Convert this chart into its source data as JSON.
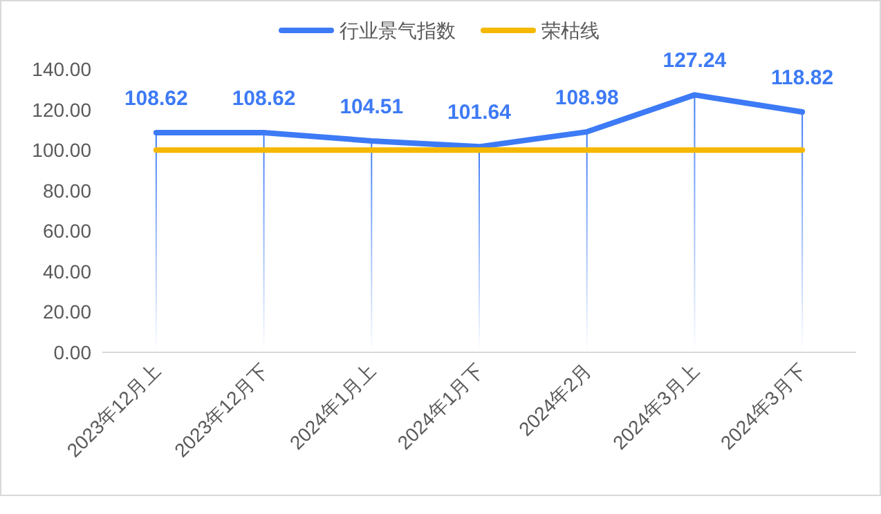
{
  "chart_data": {
    "type": "line",
    "categories": [
      "2023年12月上",
      "2023年12月下",
      "2024年1月上",
      "2024年1月下",
      "2024年2月",
      "2024年3月上",
      "2024年3月下"
    ],
    "series": [
      {
        "name": "行业景气指数",
        "color": "#3d7af5",
        "values": [
          108.62,
          108.62,
          104.51,
          101.64,
          108.98,
          127.24,
          118.82
        ],
        "value_labels": [
          "108.62",
          "108.62",
          "104.51",
          "101.64",
          "108.98",
          "127.24",
          "118.82"
        ],
        "errors": [
          [
            0,
            108.62
          ],
          [
            0,
            108.62
          ],
          [
            0,
            104.51
          ],
          [
            0,
            101.64
          ],
          [
            0,
            108.98
          ],
          [
            0,
            127.24
          ],
          [
            0,
            118.82
          ]
        ]
      },
      {
        "name": "荣枯线",
        "color": "#f5b800",
        "values": [
          100,
          100,
          100,
          100,
          100,
          100,
          100
        ]
      }
    ],
    "ylim": [
      0,
      140
    ],
    "yticks": [
      {
        "value": 0,
        "label": "0.00"
      },
      {
        "value": 20,
        "label": "20.00"
      },
      {
        "value": 40,
        "label": "40.00"
      },
      {
        "value": 60,
        "label": "60.00"
      },
      {
        "value": 80,
        "label": "80.00"
      },
      {
        "value": 100,
        "label": "100.00"
      },
      {
        "value": 120,
        "label": "120.00"
      },
      {
        "value": 140,
        "label": "140.00"
      }
    ],
    "grid": false,
    "legend": "top",
    "marker": "none",
    "line_style": "solid"
  }
}
